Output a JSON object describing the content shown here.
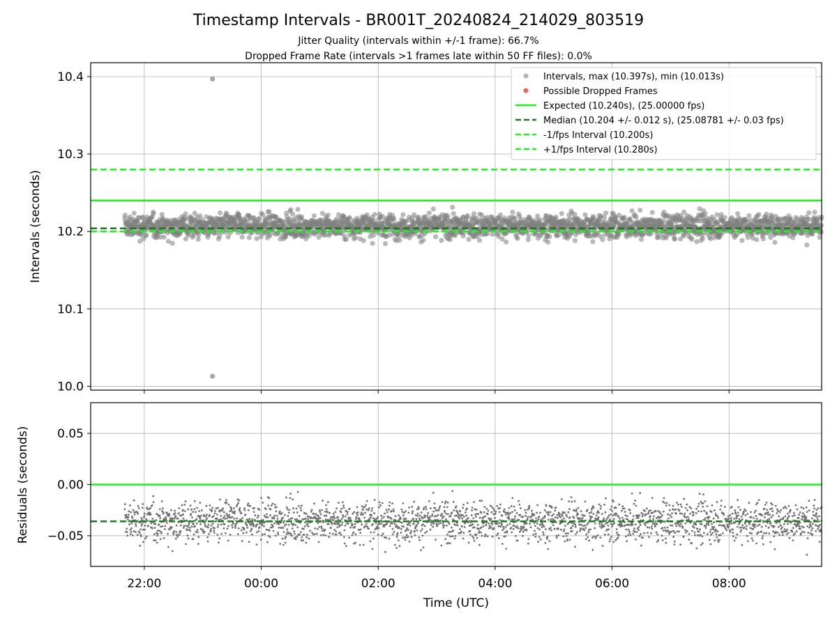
{
  "chart_data": [
    {
      "type": "scatter",
      "title": "Timestamp Intervals - BR001T_20240824_214029_803519",
      "subtitle_lines": [
        "Jitter Quality (intervals within +/-1 frame): 66.7%",
        "Dropped Frame Rate (intervals >1 frames late within 50 FF files): 0.0%"
      ],
      "xlabel": "",
      "ylabel": "Intervals (seconds)",
      "xlim": [
        "21:05",
        "09:35"
      ],
      "ylim": [
        9.995,
        10.418
      ],
      "yticks": [
        10.0,
        10.1,
        10.2,
        10.3,
        10.4
      ],
      "ytick_labels": [
        "10.0",
        "10.1",
        "10.2",
        "10.3",
        "10.4"
      ],
      "grid": true,
      "legend_position": "upper-right",
      "series": [
        {
          "name": "Intervals, max (10.397s), min (10.013s)",
          "kind": "scatter",
          "color": "#808080",
          "x_range": [
            "21:40",
            "09:35"
          ],
          "center": 10.207,
          "spread": 0.011,
          "max": 10.397,
          "min": 10.013,
          "max_at": "23:10",
          "min_at": "23:10"
        },
        {
          "name": "Possible Dropped Frames",
          "kind": "scatter",
          "color": "#f06060",
          "values": []
        },
        {
          "name": "Expected (10.240s), (25.00000 fps)",
          "kind": "hline",
          "y": 10.24,
          "color": "#22ee22",
          "style": "solid"
        },
        {
          "name": "Median (10.204 +/- 0.012 s), (25.08781 +/- 0.03 fps)",
          "kind": "hline",
          "y": 10.204,
          "color": "#1a7a1a",
          "style": "dashed"
        },
        {
          "name": "-1/fps Interval (10.200s)",
          "kind": "hline",
          "y": 10.2,
          "color": "#22ee22",
          "style": "dashed"
        },
        {
          "name": "+1/fps Interval (10.280s)",
          "kind": "hline",
          "y": 10.28,
          "color": "#22ee22",
          "style": "dashed"
        }
      ]
    },
    {
      "type": "scatter",
      "xlabel": "Time (UTC)",
      "ylabel": "Residuals (seconds)",
      "xlim": [
        "21:05",
        "09:35"
      ],
      "xticks": [
        "22:00",
        "00:00",
        "02:00",
        "04:00",
        "06:00",
        "08:00"
      ],
      "ylim": [
        -0.08,
        0.08
      ],
      "yticks": [
        0.05,
        0.0,
        -0.05
      ],
      "ytick_labels": [
        "0.05",
        "0.00",
        "−0.05"
      ],
      "grid": true,
      "series": [
        {
          "kind": "scatter",
          "color": "#707070",
          "x_range": [
            "21:40",
            "09:35"
          ],
          "center": -0.036,
          "spread": 0.011
        },
        {
          "kind": "hline",
          "y": 0.0,
          "color": "#22ee22",
          "style": "solid"
        },
        {
          "kind": "hline",
          "y": -0.036,
          "color": "#1a7a1a",
          "style": "dashed"
        }
      ]
    }
  ]
}
